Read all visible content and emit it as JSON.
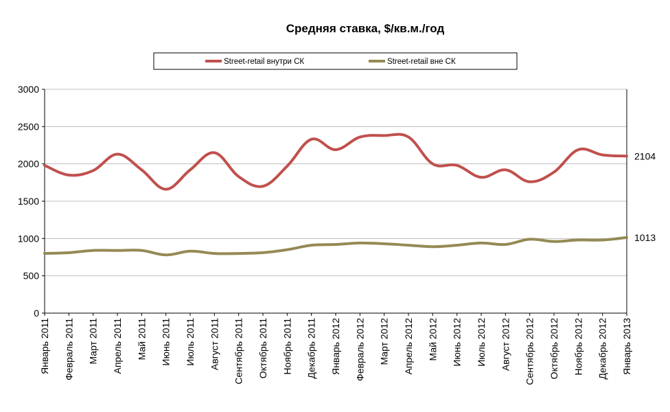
{
  "chart_data": {
    "type": "line",
    "title": "Средняя ставка, $/кв.м./год",
    "xlabel": "",
    "ylabel": "",
    "ylim": [
      0,
      3000
    ],
    "yticks": [
      "0",
      "500",
      "1000",
      "1500",
      "2000",
      "2500",
      "3000"
    ],
    "grid": true,
    "legend_position": "top",
    "categories": [
      "Январь 2011",
      "Февраль 2011",
      "Март 2011",
      "Апрель 2011",
      "Май 2011",
      "Июнь 2011",
      "Июль 2011",
      "Август 2011",
      "Сентябрь 2011",
      "Октябрь 2011",
      "Ноябрь 2011",
      "Декабрь 2011",
      "Январь 2012",
      "Февраль 2012",
      "Март 2012",
      "Апрель 2012",
      "Май 2012",
      "Июнь 2012",
      "Июль 2012",
      "Август 2012",
      "Сентябрь 2012",
      "Октябрь 2012",
      "Ноябрь 2012",
      "Декабрь 2012",
      "Январь 2013"
    ],
    "series": [
      {
        "name": "Street-retail внутри  СК",
        "color": "#c0504d",
        "values": [
          1980,
          1850,
          1910,
          2130,
          1920,
          1660,
          1920,
          2150,
          1830,
          1700,
          1970,
          2330,
          2190,
          2360,
          2380,
          2360,
          2000,
          1980,
          1820,
          1920,
          1760,
          1890,
          2190,
          2120,
          2104
        ],
        "end_label": "2104"
      },
      {
        "name": "Street-retail  вне СК",
        "color": "#948a54",
        "values": [
          800,
          810,
          840,
          840,
          840,
          780,
          830,
          800,
          800,
          810,
          850,
          910,
          920,
          940,
          930,
          910,
          890,
          910,
          940,
          920,
          990,
          960,
          980,
          980,
          1013
        ],
        "end_label": "1013"
      }
    ]
  }
}
